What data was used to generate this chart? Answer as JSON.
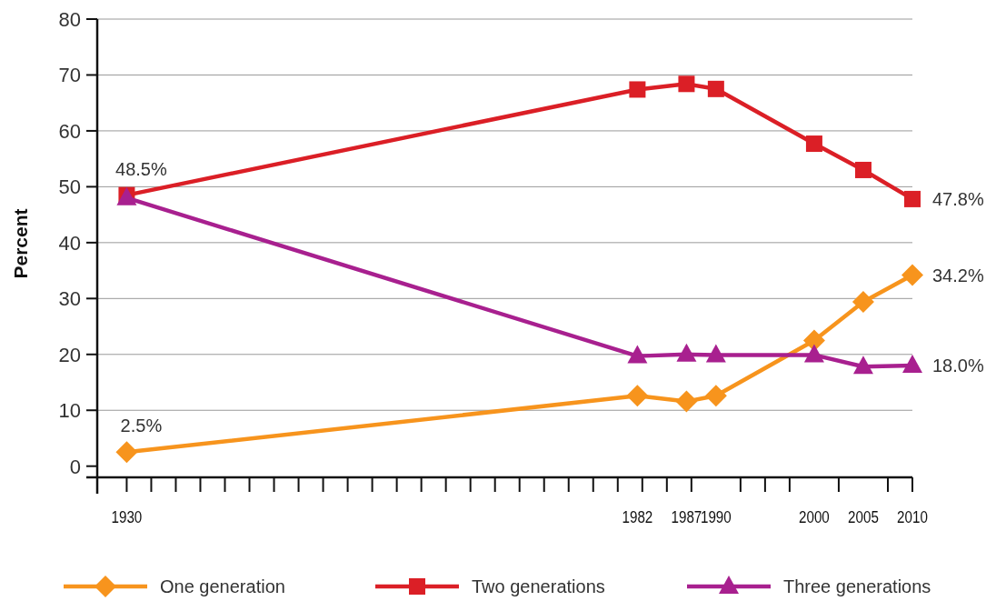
{
  "chart_data": {
    "type": "line",
    "ylabel": "Percent",
    "x": [
      1930,
      1982,
      1987,
      1990,
      2000,
      2005,
      2010
    ],
    "xlim": [
      1927,
      2010
    ],
    "xticks": [
      {
        "value": 1927,
        "label": null
      },
      1930,
      {
        "value": 1932.5,
        "label": null
      },
      {
        "value": 1935,
        "label": null
      },
      {
        "value": 1937.5,
        "label": null
      },
      {
        "value": 1940,
        "label": null
      },
      {
        "value": 1942.5,
        "label": null
      },
      {
        "value": 1945,
        "label": null
      },
      {
        "value": 1947.5,
        "label": null
      },
      {
        "value": 1950,
        "label": null
      },
      {
        "value": 1952.5,
        "label": null
      },
      {
        "value": 1955,
        "label": null
      },
      {
        "value": 1957.5,
        "label": null
      },
      {
        "value": 1960,
        "label": null
      },
      {
        "value": 1962.5,
        "label": null
      },
      {
        "value": 1965,
        "label": null
      },
      {
        "value": 1967.5,
        "label": null
      },
      {
        "value": 1970,
        "label": null
      },
      {
        "value": 1972.5,
        "label": null
      },
      {
        "value": 1975,
        "label": null
      },
      {
        "value": 1977.5,
        "label": null
      },
      {
        "value": 1980,
        "label": null
      },
      1982,
      {
        "value": 1982.5,
        "label": null
      },
      {
        "value": 1985,
        "label": null
      },
      1987,
      {
        "value": 1987.5,
        "label": null
      },
      1990,
      {
        "value": 1992.5,
        "label": null
      },
      {
        "value": 1995,
        "label": null
      },
      {
        "value": 1997.5,
        "label": null
      },
      2000,
      {
        "value": 2002.5,
        "label": null
      },
      2005,
      {
        "value": 2007.5,
        "label": null
      },
      2010
    ],
    "ylim": [
      -2,
      80
    ],
    "yticks": [
      0,
      10,
      20,
      30,
      40,
      50,
      60,
      70,
      80
    ],
    "grid": "y",
    "legend": "bottom",
    "line_style": "solid",
    "series": [
      {
        "name": "One generation",
        "color": "#f7941d",
        "marker": "diamond",
        "values": [
          2.5,
          12.6,
          11.6,
          12.6,
          22.5,
          29.4,
          34.2
        ],
        "value_labels": [
          "2.5%",
          null,
          null,
          null,
          null,
          null,
          "34.2%"
        ]
      },
      {
        "name": "Two generations",
        "color": "#db1f26",
        "marker": "square",
        "values": [
          48.5,
          67.4,
          68.4,
          67.5,
          57.7,
          53.0,
          47.8
        ],
        "value_labels": [
          "48.5%",
          null,
          null,
          null,
          null,
          null,
          "47.8%"
        ]
      },
      {
        "name": "Three generations",
        "color": "#a8208f",
        "marker": "triangle",
        "values": [
          48.0,
          19.7,
          20.0,
          19.9,
          19.9,
          17.8,
          18.0
        ],
        "value_labels": [
          null,
          null,
          null,
          null,
          null,
          null,
          "18.0%"
        ]
      }
    ]
  }
}
